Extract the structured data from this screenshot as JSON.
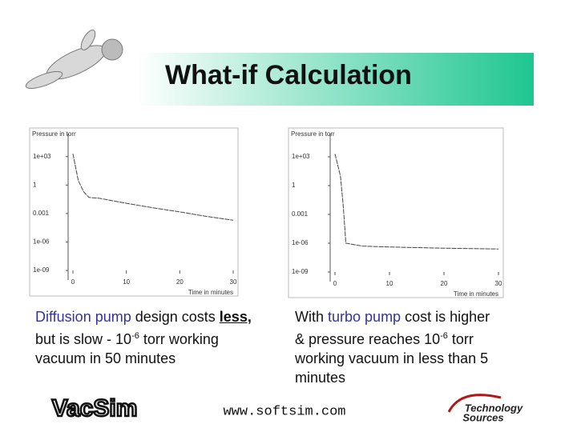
{
  "slide": {
    "title": "What-if Calculation",
    "left_caption": [
      "Diffusion pump",
      " design costs ",
      "less,",
      "  but is slow - 10",
      "-6",
      " torr working vacuum in 50 minutes"
    ],
    "right_caption": [
      "With ",
      "turbo pump",
      " cost is higher & pressure reaches 10",
      "-6",
      " torr working vacuum in less than 5 minutes"
    ],
    "logo": "VacSim",
    "url": "www.softsim.com",
    "brand": [
      "Technology",
      "Sources"
    ]
  },
  "chart_data": [
    {
      "type": "line",
      "ylabel": "Pressure in torr",
      "xlabel": "Time in minutes",
      "log_y": true,
      "x": [
        0,
        1,
        2,
        3,
        5,
        10,
        15,
        20,
        25,
        30
      ],
      "series": [
        {
          "color": "#444444",
          "values": [
            2000,
            3,
            0.2,
            0.05,
            0.04,
            0.012,
            0.004,
            0.0015,
            0.0005,
            0.0002
          ]
        }
      ],
      "xlim": [
        0,
        30
      ],
      "xticks": [
        0,
        10,
        20,
        30
      ],
      "ylim": [
        1e-10,
        100000
      ],
      "yticks": [
        {
          "value": 1000,
          "label": "1e+03"
        },
        1,
        0.001,
        {
          "value": 1e-06,
          "label": "1e-06"
        },
        {
          "value": 1e-09,
          "label": "1e-09"
        }
      ]
    },
    {
      "type": "line",
      "ylabel": "Pressure in torr",
      "xlabel": "Time in minutes",
      "log_y": true,
      "x": [
        0,
        1,
        1.5,
        2,
        5,
        10,
        15,
        20,
        30
      ],
      "series": [
        {
          "color": "#444444",
          "values": [
            2000,
            10,
            0.01,
            1e-06,
            5e-07,
            4e-07,
            3.5e-07,
            3e-07,
            2.5e-07
          ]
        }
      ],
      "xlim": [
        0,
        30
      ],
      "xticks": [
        0,
        10,
        20,
        30
      ],
      "ylim": [
        1e-10,
        100000
      ],
      "yticks": [
        {
          "value": 1000,
          "label": "1e+03"
        },
        1,
        0.001,
        {
          "value": 1e-06,
          "label": "1e-06"
        },
        {
          "value": 1e-09,
          "label": "1e-09"
        }
      ]
    }
  ]
}
